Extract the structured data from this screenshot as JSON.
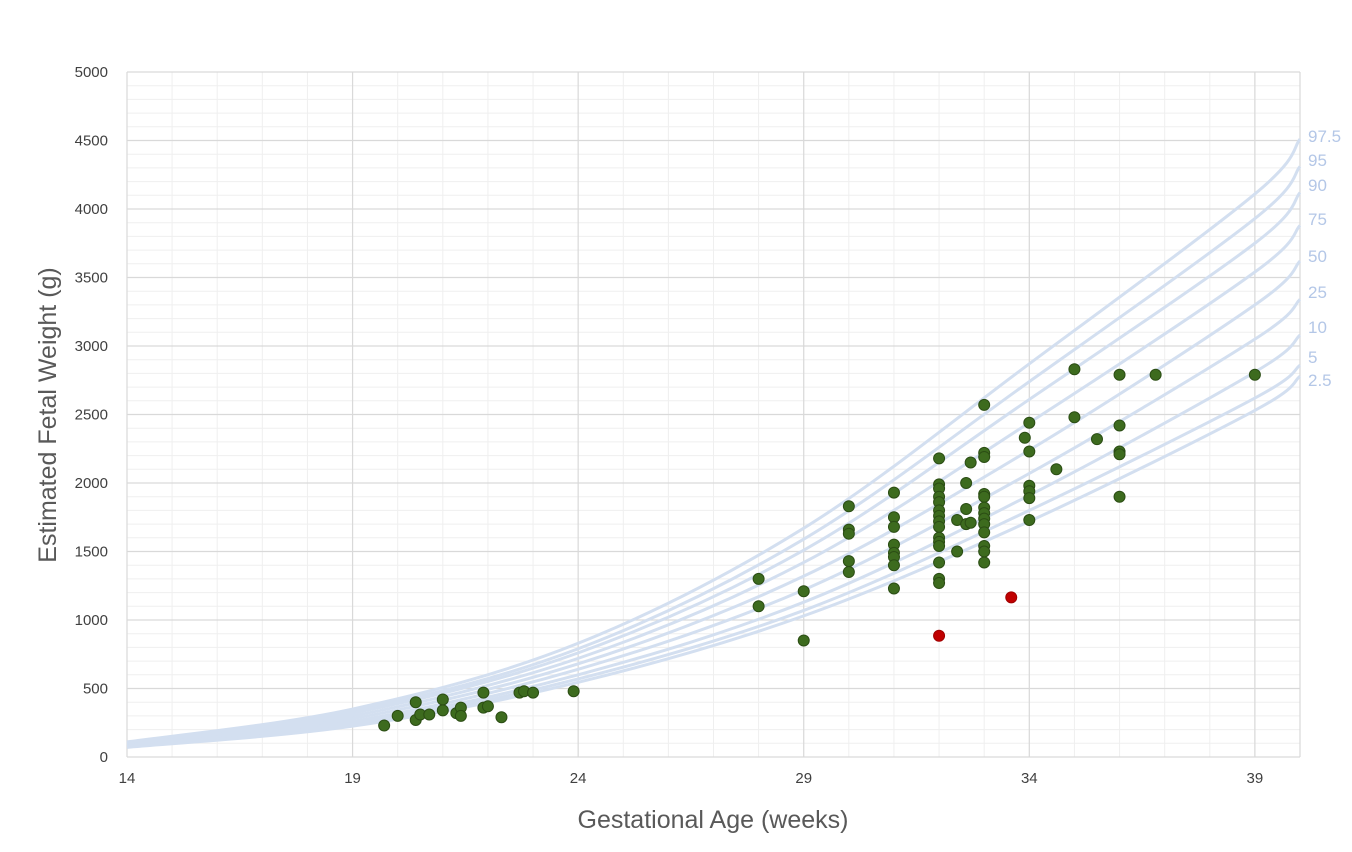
{
  "chart_data": {
    "type": "scatter",
    "title": "",
    "xlabel": "Gestational Age (weeks)",
    "ylabel": "Estimated Fetal Weight (g)",
    "xlim": [
      14,
      40
    ],
    "ylim": [
      0,
      5000
    ],
    "x_ticks": [
      14,
      19,
      24,
      29,
      34,
      39
    ],
    "y_ticks": [
      0,
      500,
      1000,
      1500,
      2000,
      2500,
      3000,
      3500,
      4000,
      4500,
      5000
    ],
    "grid": true,
    "legend": "none",
    "colors": {
      "points": "#3d6b1e",
      "points_edge": "#2b4d14",
      "highlight": "#c00000",
      "curves": "#d3dff0",
      "curve_labels": "#b4c7e7",
      "grid_major": "#d9d9d9",
      "grid_minor": "#efefef"
    },
    "percentile_curves": [
      {
        "name": "97.5",
        "x": [
          14,
          19,
          24,
          29,
          34,
          39,
          40
        ],
        "y": [
          110,
          350,
          830,
          1670,
          2870,
          4110,
          4510
        ]
      },
      {
        "name": "95",
        "x": [
          14,
          19,
          24,
          29,
          34,
          39,
          40
        ],
        "y": [
          105,
          335,
          790,
          1590,
          2740,
          3930,
          4310
        ]
      },
      {
        "name": "90",
        "x": [
          14,
          19,
          24,
          29,
          34,
          39,
          40
        ],
        "y": [
          100,
          320,
          760,
          1510,
          2610,
          3750,
          4120
        ]
      },
      {
        "name": "75",
        "x": [
          14,
          19,
          24,
          29,
          34,
          39,
          40
        ],
        "y": [
          95,
          300,
          720,
          1420,
          2440,
          3540,
          3880
        ]
      },
      {
        "name": "50",
        "x": [
          14,
          19,
          24,
          29,
          34,
          39,
          40
        ],
        "y": [
          90,
          280,
          680,
          1320,
          2240,
          3300,
          3620
        ]
      },
      {
        "name": "25",
        "x": [
          14,
          19,
          24,
          29,
          34,
          39,
          40
        ],
        "y": [
          85,
          260,
          640,
          1220,
          2070,
          3050,
          3340
        ]
      },
      {
        "name": "10",
        "x": [
          14,
          19,
          24,
          29,
          34,
          39,
          40
        ],
        "y": [
          80,
          245,
          600,
          1130,
          1910,
          2810,
          3080
        ]
      },
      {
        "name": "5",
        "x": [
          14,
          19,
          24,
          29,
          34,
          39,
          40
        ],
        "y": [
          75,
          235,
          570,
          1070,
          1800,
          2620,
          2860
        ]
      },
      {
        "name": "2.5",
        "x": [
          14,
          19,
          24,
          29,
          34,
          39,
          40
        ],
        "y": [
          70,
          225,
          545,
          1030,
          1720,
          2530,
          2780
        ]
      }
    ],
    "points": [
      {
        "x": 19.7,
        "y": 230
      },
      {
        "x": 20.0,
        "y": 300
      },
      {
        "x": 20.4,
        "y": 400
      },
      {
        "x": 20.4,
        "y": 270
      },
      {
        "x": 20.5,
        "y": 310
      },
      {
        "x": 20.7,
        "y": 310
      },
      {
        "x": 21.0,
        "y": 420
      },
      {
        "x": 21.0,
        "y": 340
      },
      {
        "x": 21.3,
        "y": 320
      },
      {
        "x": 21.4,
        "y": 360
      },
      {
        "x": 21.4,
        "y": 300
      },
      {
        "x": 21.9,
        "y": 470
      },
      {
        "x": 21.9,
        "y": 360
      },
      {
        "x": 22.0,
        "y": 370
      },
      {
        "x": 22.3,
        "y": 290
      },
      {
        "x": 22.7,
        "y": 470
      },
      {
        "x": 22.8,
        "y": 480
      },
      {
        "x": 23.0,
        "y": 470
      },
      {
        "x": 23.9,
        "y": 480
      },
      {
        "x": 28.0,
        "y": 1300
      },
      {
        "x": 28.0,
        "y": 1100
      },
      {
        "x": 29.0,
        "y": 1210
      },
      {
        "x": 29.0,
        "y": 850
      },
      {
        "x": 30.0,
        "y": 1830
      },
      {
        "x": 30.0,
        "y": 1660
      },
      {
        "x": 30.0,
        "y": 1630
      },
      {
        "x": 30.0,
        "y": 1430
      },
      {
        "x": 30.0,
        "y": 1350
      },
      {
        "x": 31.0,
        "y": 1930
      },
      {
        "x": 31.0,
        "y": 1750
      },
      {
        "x": 31.0,
        "y": 1680
      },
      {
        "x": 31.0,
        "y": 1550
      },
      {
        "x": 31.0,
        "y": 1490
      },
      {
        "x": 31.0,
        "y": 1460
      },
      {
        "x": 31.0,
        "y": 1400
      },
      {
        "x": 31.0,
        "y": 1230
      },
      {
        "x": 32.0,
        "y": 2180
      },
      {
        "x": 32.0,
        "y": 1990
      },
      {
        "x": 32.0,
        "y": 1960
      },
      {
        "x": 32.0,
        "y": 1900
      },
      {
        "x": 32.0,
        "y": 1860
      },
      {
        "x": 32.0,
        "y": 1800
      },
      {
        "x": 32.0,
        "y": 1760
      },
      {
        "x": 32.0,
        "y": 1720
      },
      {
        "x": 32.0,
        "y": 1680
      },
      {
        "x": 32.0,
        "y": 1600
      },
      {
        "x": 32.0,
        "y": 1570
      },
      {
        "x": 32.0,
        "y": 1540
      },
      {
        "x": 32.0,
        "y": 1420
      },
      {
        "x": 32.0,
        "y": 1300
      },
      {
        "x": 32.0,
        "y": 1270
      },
      {
        "x": 32.4,
        "y": 1730
      },
      {
        "x": 32.4,
        "y": 1500
      },
      {
        "x": 32.6,
        "y": 1810
      },
      {
        "x": 32.6,
        "y": 2000
      },
      {
        "x": 32.6,
        "y": 1700
      },
      {
        "x": 32.7,
        "y": 1710
      },
      {
        "x": 32.7,
        "y": 2150
      },
      {
        "x": 33.0,
        "y": 2570
      },
      {
        "x": 33.0,
        "y": 2220
      },
      {
        "x": 33.0,
        "y": 2190
      },
      {
        "x": 33.0,
        "y": 1920
      },
      {
        "x": 33.0,
        "y": 1900
      },
      {
        "x": 33.0,
        "y": 1820
      },
      {
        "x": 33.0,
        "y": 1780
      },
      {
        "x": 33.0,
        "y": 1740
      },
      {
        "x": 33.0,
        "y": 1700
      },
      {
        "x": 33.0,
        "y": 1640
      },
      {
        "x": 33.0,
        "y": 1540
      },
      {
        "x": 33.0,
        "y": 1500
      },
      {
        "x": 33.0,
        "y": 1420
      },
      {
        "x": 33.9,
        "y": 2330
      },
      {
        "x": 34.0,
        "y": 2440
      },
      {
        "x": 34.0,
        "y": 2230
      },
      {
        "x": 34.0,
        "y": 1980
      },
      {
        "x": 34.0,
        "y": 1940
      },
      {
        "x": 34.0,
        "y": 1890
      },
      {
        "x": 34.0,
        "y": 1730
      },
      {
        "x": 34.6,
        "y": 2100
      },
      {
        "x": 35.0,
        "y": 2830
      },
      {
        "x": 35.0,
        "y": 2480
      },
      {
        "x": 35.5,
        "y": 2320
      },
      {
        "x": 36.0,
        "y": 2790
      },
      {
        "x": 36.0,
        "y": 2420
      },
      {
        "x": 36.0,
        "y": 2230
      },
      {
        "x": 36.0,
        "y": 2210
      },
      {
        "x": 36.0,
        "y": 1900
      },
      {
        "x": 36.8,
        "y": 2790
      },
      {
        "x": 39.0,
        "y": 2790
      }
    ],
    "highlighted_points": [
      {
        "x": 32.0,
        "y": 885
      },
      {
        "x": 33.6,
        "y": 1165
      }
    ]
  }
}
